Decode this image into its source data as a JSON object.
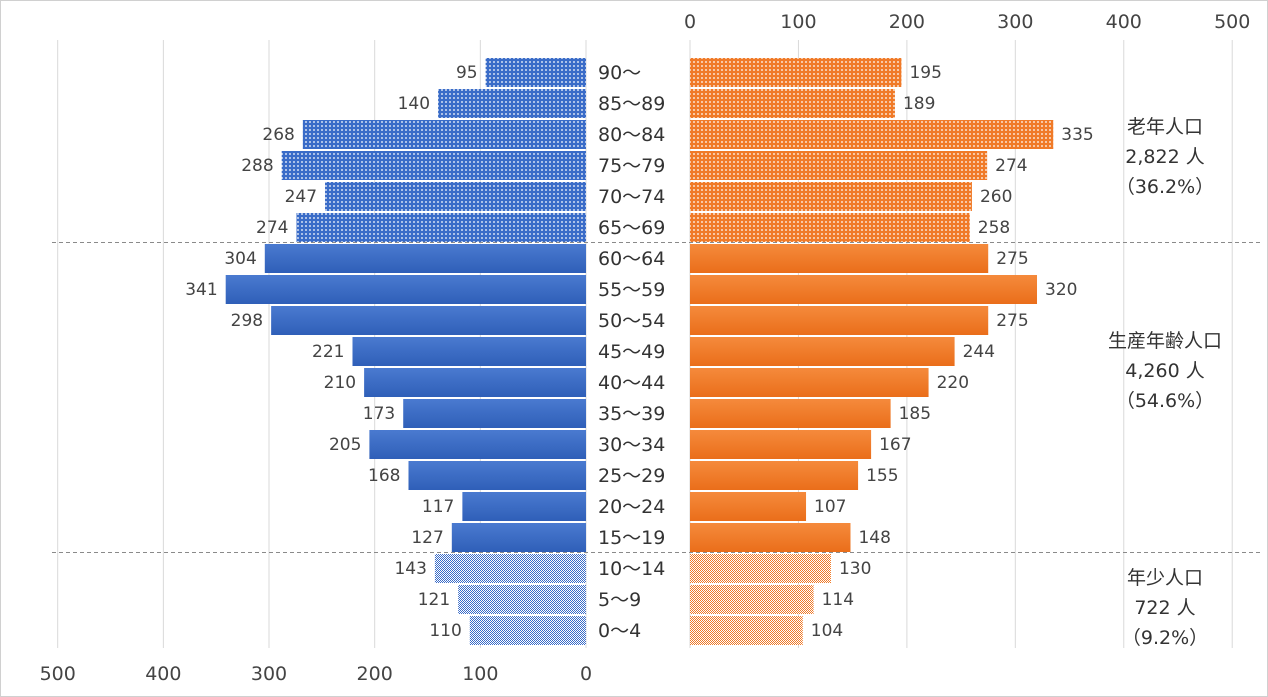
{
  "chart_data": {
    "type": "bar",
    "orientation": "horizontal",
    "layout": "population-pyramid",
    "categories": [
      "0～4",
      "5～9",
      "10～14",
      "15～19",
      "20～24",
      "25～29",
      "30～34",
      "35～39",
      "40～44",
      "45～49",
      "50～54",
      "55～59",
      "60～64",
      "65～69",
      "70～74",
      "75～79",
      "80～84",
      "85～89",
      "90～"
    ],
    "series": [
      {
        "color": "#3a6cc8",
        "side": "left",
        "values": [
          110,
          121,
          143,
          127,
          117,
          168,
          205,
          173,
          210,
          221,
          298,
          341,
          304,
          274,
          247,
          288,
          268,
          140,
          95
        ]
      },
      {
        "color": "#f07a28",
        "side": "right",
        "values": [
          104,
          114,
          130,
          148,
          107,
          155,
          167,
          185,
          220,
          244,
          275,
          320,
          275,
          258,
          260,
          274,
          335,
          189,
          195
        ]
      }
    ],
    "xlim": [
      0,
      500
    ],
    "left_ticks": [
      "500",
      "400",
      "300",
      "200",
      "100",
      "0"
    ],
    "right_ticks": [
      "0",
      "100",
      "200",
      "300",
      "400",
      "500"
    ],
    "grid": true,
    "groups": [
      {
        "name": "老年人口",
        "total": "2,822 人",
        "share": "（36.2%）",
        "from": 13,
        "to": 18,
        "pattern": "dots"
      },
      {
        "name": "生産年齢人口",
        "total": "4,260 人",
        "share": "（54.6%）",
        "from": 3,
        "to": 12,
        "pattern": "solid"
      },
      {
        "name": "年少人口",
        "total": "722 人",
        "share": "（9.2%）",
        "from": 0,
        "to": 2,
        "pattern": "fine"
      }
    ]
  }
}
